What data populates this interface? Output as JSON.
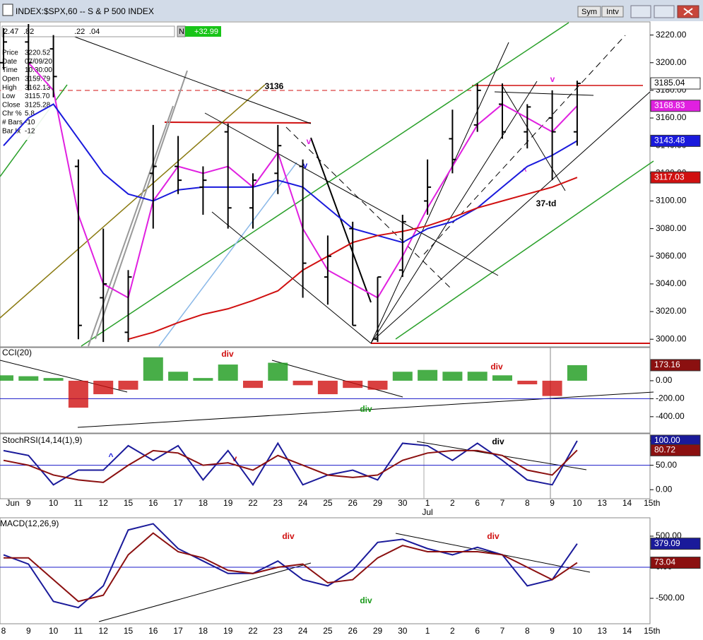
{
  "window": {
    "buttons": [
      "Sym",
      "Intv"
    ]
  },
  "toolbar": {
    "fields": [
      "2.47",
      ".82",
      ".22",
      ".04"
    ],
    "flag": "N",
    "change": "+32.99"
  },
  "info": {
    "rows": [
      [
        "Price",
        "3220.52"
      ],
      [
        "Date",
        "07/09/20"
      ],
      [
        "Time",
        "10:30:00"
      ],
      [
        "Open",
        "3159.79"
      ],
      [
        "High",
        "3162.13"
      ],
      [
        "Low",
        "3115.70"
      ],
      [
        "Close",
        "3125.28"
      ],
      [
        "Chr %",
        "5.8"
      ],
      [
        "# Bars",
        "-10"
      ],
      [
        "Bar Ix",
        "-12"
      ]
    ]
  },
  "chart_data": [
    {
      "type": "ohlc",
      "title": "INDEX:$SPX,60 -- S & P 500 INDEX",
      "color": "#000000",
      "open": [
        3200,
        3215,
        3210,
        3125,
        3030,
        3005,
        3120,
        3125,
        3110,
        3150,
        3095,
        3120,
        3125,
        3045,
        3080,
        3000,
        3050,
        3100,
        3145,
        3155,
        3170,
        3150,
        3160,
        3150,
        null,
        null,
        null
      ],
      "high": [
        3225,
        3228,
        3220,
        3130,
        3080,
        3050,
        3155,
        3147,
        3125,
        3156,
        3120,
        3155,
        3130,
        3075,
        3085,
        3045,
        3090,
        3130,
        3166,
        3185,
        3185,
        3170,
        3180,
        3187,
        null,
        null,
        null
      ],
      "low": [
        3195,
        3180,
        3175,
        3000,
        2998,
        2998,
        3080,
        3105,
        3090,
        3080,
        3080,
        3105,
        3030,
        3025,
        3010,
        2998,
        3045,
        3090,
        3120,
        3150,
        3145,
        3138,
        3115,
        3140,
        null,
        null,
        null
      ],
      "close": [
        3215,
        3200,
        3190,
        3010,
        3040,
        3045,
        3125,
        3115,
        3115,
        3095,
        3115,
        3140,
        3055,
        3060,
        3010,
        3045,
        3085,
        3110,
        3130,
        3180,
        3150,
        3168,
        3150,
        3185.04,
        null,
        null,
        null
      ],
      "series": [
        {
          "color": "#e020e0",
          "values": [
            null,
            3200,
            3180,
            3090,
            3040,
            3030,
            3100,
            3125,
            3120,
            3125,
            3110,
            3135,
            3080,
            3050,
            3040,
            3030,
            3060,
            3095,
            3125,
            3155,
            3170,
            3160,
            3150,
            3168.83,
            null,
            null,
            null
          ]
        },
        {
          "color": "#1a1adc",
          "values": [
            3140,
            3160,
            3170,
            3145,
            3120,
            3105,
            3100,
            3108,
            3110,
            3110,
            3110,
            3115,
            3110,
            3095,
            3080,
            3075,
            3070,
            3080,
            3085,
            3095,
            3110,
            3125,
            3133,
            3143.48,
            null,
            null,
            null
          ]
        },
        {
          "color": "#d01010",
          "values": [
            null,
            null,
            null,
            null,
            null,
            3000,
            3005,
            3012,
            3018,
            3022,
            3028,
            3035,
            3050,
            3060,
            3070,
            3075,
            3078,
            3082,
            3088,
            3095,
            3100,
            3105,
            3110,
            3117.03,
            null,
            null,
            null
          ]
        }
      ],
      "ylim": [
        2995,
        3229
      ],
      "yticks": [
        {
          "value": 3000,
          "label": "3000.00"
        },
        {
          "value": 3020,
          "label": "3020.00"
        },
        {
          "value": 3040,
          "label": "3040.00"
        },
        {
          "value": 3060,
          "label": "3060.00"
        },
        {
          "value": 3080,
          "label": "3080.00"
        },
        {
          "value": 3100,
          "label": "3100.00"
        },
        {
          "value": 3120,
          "label": "3120.00"
        },
        {
          "value": 3140,
          "label": "3140.00"
        },
        {
          "value": 3160,
          "label": "3160.00"
        },
        {
          "value": 3180,
          "label": "3180.00"
        },
        {
          "value": 3200,
          "label": "3200.00"
        },
        {
          "value": 3220,
          "label": "3220.00"
        }
      ],
      "annotations": [
        "3136",
        "v",
        "v",
        "^",
        "v",
        "37-td"
      ]
    },
    {
      "type": "histogram",
      "title": "CCI(20)",
      "color_up": "#1a9a1a",
      "color_down": "#d01010",
      "values": [
        60,
        50,
        30,
        -300,
        -150,
        -100,
        260,
        100,
        30,
        180,
        -80,
        200,
        -50,
        -150,
        -80,
        -100,
        100,
        120,
        100,
        100,
        60,
        -40,
        -170,
        173.16,
        null,
        null,
        null
      ],
      "ylim": [
        -574,
        369
      ],
      "yticks": [
        {
          "value": 0,
          "label": "0.00"
        },
        {
          "value": -200,
          "label": "-200.00"
        },
        {
          "value": -400,
          "label": "-400.00"
        }
      ],
      "annotations": [
        "div",
        "div",
        "div"
      ]
    },
    {
      "type": "line",
      "title": "StochRSI(14,14(1),9)",
      "categories": [
        null,
        "9",
        "10",
        "11",
        "12",
        "15",
        "16",
        "17",
        "18",
        "19",
        "22",
        "23",
        "24",
        "25",
        "26",
        "29",
        "30",
        "1",
        "2",
        "6",
        "7",
        "8",
        "9",
        "10",
        "13",
        "14",
        "15th"
      ],
      "months": [
        "Jun",
        "Jul"
      ],
      "series": [
        {
          "color": "#1a1a9a",
          "values": [
            80,
            70,
            10,
            40,
            40,
            90,
            60,
            90,
            20,
            80,
            10,
            95,
            10,
            30,
            40,
            20,
            95,
            90,
            60,
            95,
            60,
            20,
            10,
            100,
            null,
            null,
            null
          ],
          "value_labels": [
            null,
            null,
            null,
            null,
            null,
            null,
            null,
            null,
            null,
            null,
            null,
            null,
            null,
            null,
            null,
            null,
            null,
            null,
            null,
            null,
            null,
            null,
            null,
            "100.00",
            null,
            null,
            null
          ]
        },
        {
          "color": "#8b1010",
          "values": [
            60,
            50,
            30,
            20,
            15,
            50,
            80,
            75,
            50,
            55,
            40,
            70,
            50,
            30,
            25,
            30,
            60,
            75,
            80,
            80,
            70,
            40,
            30,
            80.72,
            null,
            null,
            null
          ]
        }
      ],
      "ylim": [
        -17,
        113
      ],
      "yticks": [
        {
          "value": 100,
          "label": "100.00"
        },
        {
          "value": 50,
          "label": "50.00"
        },
        {
          "value": 0,
          "label": "0.00"
        }
      ],
      "annotations": [
        "^",
        "v",
        "div"
      ]
    },
    {
      "type": "line",
      "title": "MACD(12,26,9)",
      "categories": [
        "8",
        "9",
        "10",
        "11",
        "12",
        "15",
        "16",
        "17",
        "18",
        "19",
        "22",
        "23",
        "24",
        "25",
        "26",
        "29",
        "30",
        "1",
        "2",
        "6",
        "7",
        "8",
        "9",
        "10",
        "13",
        "14",
        "15th"
      ],
      "series": [
        {
          "color": "#1a1a9a",
          "values": [
            200,
            50,
            -550,
            -650,
            -300,
            600,
            700,
            300,
            100,
            -100,
            -100,
            100,
            -200,
            -300,
            -50,
            400,
            450,
            300,
            200,
            320,
            200,
            -300,
            -200,
            379.09,
            null,
            null,
            null
          ]
        },
        {
          "color": "#8b1010",
          "values": [
            150,
            150,
            -200,
            -550,
            -450,
            200,
            550,
            250,
            150,
            -50,
            -100,
            0,
            50,
            -250,
            -200,
            150,
            350,
            250,
            250,
            250,
            200,
            0,
            -200,
            73.04,
            null,
            null,
            null
          ]
        }
      ],
      "ylim": [
        -898,
        773
      ],
      "yticks": [
        {
          "value": 500,
          "label": "500.00"
        },
        {
          "value": 0,
          "label": "0.00"
        },
        {
          "value": -500,
          "label": "-500.00"
        }
      ],
      "annotations": [
        "div",
        "div",
        "div"
      ]
    }
  ]
}
